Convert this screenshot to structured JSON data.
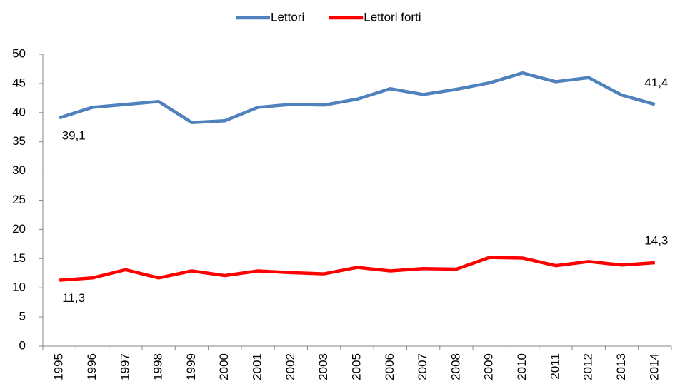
{
  "chart_data": {
    "type": "line",
    "categories": [
      "1995",
      "1996",
      "1997",
      "1998",
      "1999",
      "2000",
      "2001",
      "2002",
      "2003",
      "2005",
      "2006",
      "2007",
      "2008",
      "2009",
      "2010",
      "2011",
      "2012",
      "2013",
      "2014"
    ],
    "series": [
      {
        "name": "Lettori",
        "color": "#4f81bd",
        "values": [
          39.1,
          40.9,
          41.4,
          41.9,
          38.3,
          38.6,
          40.9,
          41.4,
          41.3,
          42.3,
          44.1,
          43.1,
          44.0,
          45.1,
          46.8,
          45.3,
          46.0,
          43.0,
          41.4
        ],
        "value_labels": [
          "39,1",
          null,
          null,
          null,
          null,
          null,
          null,
          null,
          null,
          null,
          null,
          null,
          null,
          null,
          null,
          null,
          null,
          null,
          "41,4"
        ]
      },
      {
        "name": "Lettori forti",
        "color": "#ff0000",
        "values": [
          11.3,
          11.7,
          13.1,
          11.7,
          12.9,
          12.1,
          12.9,
          12.6,
          12.4,
          13.5,
          12.9,
          13.3,
          13.2,
          15.2,
          15.1,
          13.8,
          14.5,
          13.9,
          14.3
        ],
        "value_labels": [
          "11,3",
          null,
          null,
          null,
          null,
          null,
          null,
          null,
          null,
          null,
          null,
          null,
          null,
          null,
          null,
          null,
          null,
          null,
          "14,3"
        ]
      }
    ],
    "ylim": [
      0,
      50
    ],
    "yticks": [
      0,
      5,
      10,
      15,
      20,
      25,
      30,
      35,
      40,
      45,
      50
    ],
    "grid": false,
    "legend": "top"
  }
}
